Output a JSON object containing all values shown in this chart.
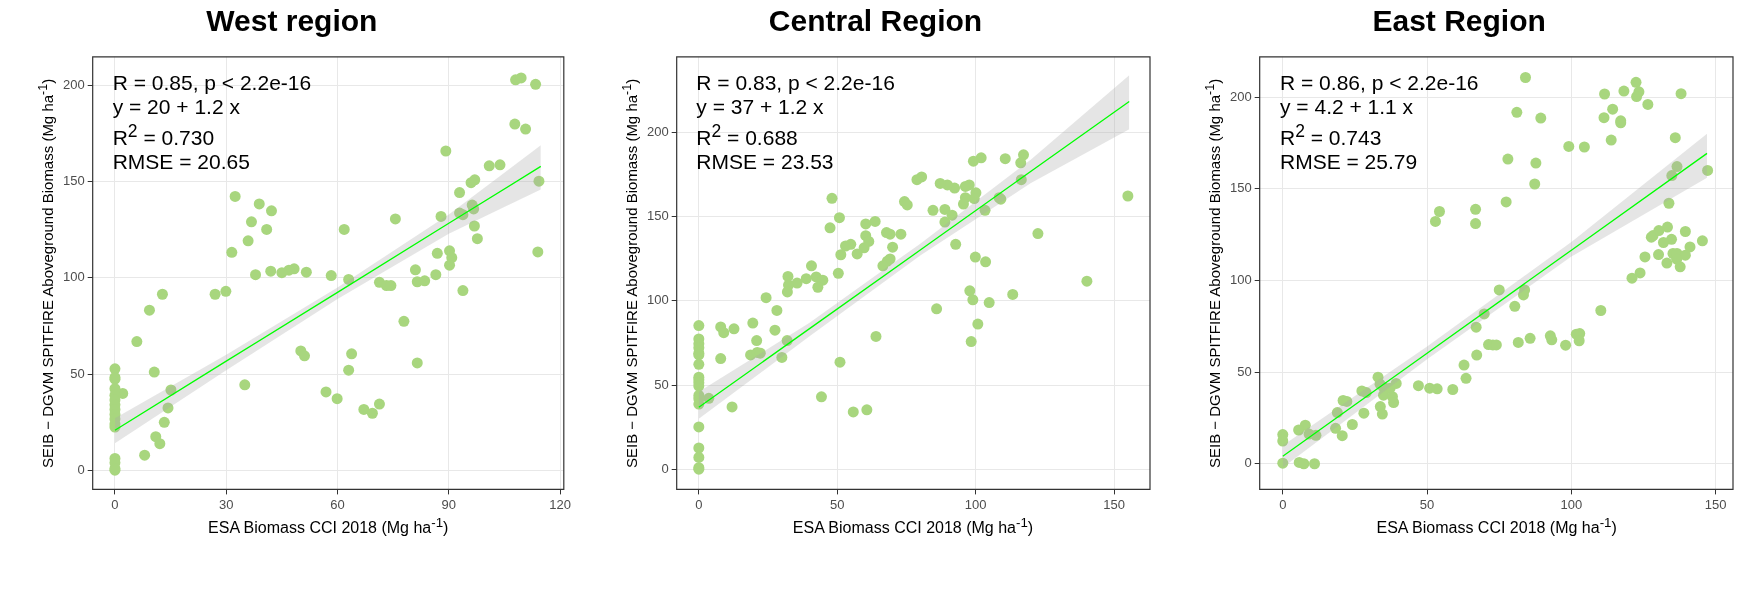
{
  "chart_data": [
    {
      "type": "scatter",
      "title": "West region",
      "xlabel": "ESA Biomass CCI 2018 (Mg ha$^{-1}$)",
      "ylabel": "SEIB − DGVM SPITFIRE Aboveground Biomass (Mg ha$^{-1}$)",
      "annotations": [
        "R = 0.85, p < 2.2e-16",
        "y = 20 + 1.2 x",
        "R$^{2}$ = 0.730",
        "RMSE = 20.65"
      ],
      "xlim": [
        -6,
        121
      ],
      "ylim": [
        -10,
        215
      ],
      "xticks": [
        0,
        30,
        60,
        90,
        120
      ],
      "yticks": [
        0,
        50,
        100,
        150,
        200
      ],
      "grid": true,
      "series": [
        {
          "marker": "circle",
          "color": "#a8d67e",
          "x": [
            108,
            109.5,
            113.4,
            107.8,
            110.7,
            89.2,
            100.9,
            103.8,
            114.3,
            96,
            97,
            92.9,
            96.3,
            96.7,
            92.9,
            93.8,
            87.9,
            96.9,
            97.7,
            114,
            86.9,
            90.2,
            90.8,
            90.2,
            86.5,
            81,
            81.5,
            83.5,
            93.8,
            77.9,
            81.5,
            75.6,
            71.3,
            73.2,
            74.4,
            63,
            58.3,
            61.8,
            51.6,
            48.3,
            46.9,
            45,
            42,
            37.9,
            32.4,
            38.9,
            42.2,
            36.8,
            40.9,
            35.9,
            31.5,
            27,
            29.9,
            12.8,
            9.3,
            5.9,
            10.6,
            15.1,
            2.1,
            14.3,
            13.3,
            11,
            12.1,
            8,
            35,
            50.1,
            51.1,
            63.8,
            63,
            56.9,
            59.9,
            67.1,
            69.4,
            71.3,
            0,
            0,
            0,
            0,
            0,
            0,
            0,
            0,
            0,
            0,
            0,
            0,
            0,
            0,
            0,
            0
          ],
          "values": [
            203,
            204,
            200.7,
            180,
            177.4,
            166,
            158.3,
            158.8,
            150.3,
            149.5,
            151,
            144.4,
            137.9,
            135.9,
            133.7,
            132.9,
            132,
            127,
            120.4,
            113.5,
            112.8,
            114.1,
            110.5,
            106.6,
            101.7,
            104.2,
            98,
            98.5,
            93.4,
            77.4,
            55.8,
            130.7,
            97.7,
            96,
            96,
            99.2,
            101.2,
            125.2,
            103,
            104.7,
            104,
            102.7,
            103.5,
            101.7,
            142.4,
            138.5,
            134.9,
            129.2,
            125.2,
            119.3,
            113.3,
            91.5,
            93,
            91.5,
            83.2,
            66.9,
            51,
            41.7,
            39.9,
            32.4,
            24.9,
            17.4,
            13.8,
            7.8,
            44.4,
            62,
            59.5,
            60.5,
            52,
            40.7,
            37.2,
            31.6,
            29.6,
            34.4,
            52.7,
            48.2,
            47.3,
            42.4,
            39,
            36.5,
            34,
            31.6,
            29,
            26.6,
            24,
            22.4,
            6.1,
            3.8,
            0.8,
            0
          ]
        },
        {
          "type": "line",
          "marker": "none",
          "color": "#00ff00",
          "x": [
            0,
            30,
            60,
            90,
            114.8
          ],
          "values": [
            20.8,
            56.7,
            92.5,
            128.4,
            158
          ],
          "lower": [
            14,
            52,
            89,
            123,
            146
          ],
          "upper": [
            27,
            60,
            95,
            133,
            169
          ]
        }
      ]
    },
    {
      "type": "scatter",
      "title": "Central Region",
      "xlabel": "ESA Biomass CCI 2018 (Mg ha$^{-1}$)",
      "ylabel": "SEIB − DGVM SPITFIRE Aboveground Biomass (Mg ha$^{-1}$)",
      "annotations": [
        "R = 0.83, p < 2.2e-16",
        "y = 37 + 1.2 x",
        "R$^{2}$ = 0.688",
        "RMSE = 23.53"
      ],
      "xlim": [
        -8,
        163
      ],
      "ylim": [
        -12,
        245
      ],
      "xticks": [
        0,
        50,
        100,
        150
      ],
      "yticks": [
        0,
        50,
        100,
        150,
        200
      ],
      "grid": true,
      "series": [
        {
          "marker": "circle",
          "color": "#a8d67e",
          "x": [
            155,
            140.2,
            122.5,
            113.4,
            104.9,
            99,
            97.9,
            100.8,
            98.4,
            85.9,
            64,
            51,
            44.3,
            55.8,
            60.7,
            12,
            3.6,
            117.3,
            116.3,
            110.7,
            102,
            99.2,
            116.5,
            108.5,
            109.1,
            100.1,
            99.5,
            96.3,
            95.6,
            103.4,
            97.7,
            96.3,
            92.4,
            89.8,
            87.2,
            88.9,
            91.5,
            88.9,
            84.6,
            92.8,
            99.9,
            103.6,
            80.5,
            78.8,
            74.3,
            75.3,
            73,
            69.1,
            67.8,
            70,
            69.1,
            68.1,
            66.5,
            63.7,
            60.3,
            60.3,
            61.4,
            59.7,
            57.2,
            54.9,
            53,
            51.3,
            50.8,
            48.1,
            47.4,
            50.4,
            40.7,
            38.8,
            42.4,
            44.8,
            43,
            35.5,
            32.2,
            32.4,
            32,
            24.3,
            28.2,
            27.5,
            31.9,
            30,
            19.5,
            20.9,
            18.7,
            21.1,
            22.2,
            7.9,
            9,
            12.7,
            7.9,
            0,
            0,
            0,
            0,
            0,
            0,
            0,
            0,
            0,
            0,
            0,
            0,
            0,
            0,
            0,
            0,
            0,
            0,
            0
          ],
          "values": [
            162.3,
            111.7,
            140,
            103.8,
            99,
            100.6,
            106,
            86.2,
            75.8,
            95.3,
            78.9,
            63.6,
            43,
            34,
            35.3,
            37,
            42.1,
            186.8,
            182,
            184.5,
            185,
            183,
            172,
            161.3,
            160.4,
            164.2,
            160.8,
            161.3,
            157.5,
            153.8,
            168.9,
            168,
            167,
            168.9,
            169.8,
            154.3,
            150.9,
            146.8,
            153.8,
            133.6,
            126,
            123.2,
            173.6,
            172,
            159,
            157,
            139.6,
            139.6,
            140.6,
            131.9,
            124.9,
            123.6,
            120.8,
            147.2,
            145.7,
            138.7,
            135.3,
            131.5,
            127.9,
            133.6,
            132.6,
            127.4,
            149.4,
            160.9,
            143.4,
            116.4,
            120.8,
            113.2,
            114.2,
            112.3,
            108.1,
            110.6,
            114.5,
            109.4,
            105.3,
            101.9,
            94.3,
            82.6,
            76.4,
            66.4,
            86.8,
            76.4,
            67.9,
            69.4,
            68.9,
            84.5,
            81.1,
            83.4,
            65.7,
            85.3,
            77.4,
            74.5,
            72.1,
            68.9,
            67.9,
            62.3,
            54.7,
            53.2,
            51.3,
            49.4,
            43.8,
            41.9,
            38.7,
            25.1,
            12.6,
            7,
            0.9,
            0
          ]
        },
        {
          "type": "line",
          "marker": "none",
          "color": "#00ff00",
          "x": [
            0,
            40,
            80,
            120,
            155.5
          ],
          "values": [
            36.8,
            83.5,
            130.2,
            177,
            218.4
          ],
          "lower": [
            30,
            79,
            127,
            170,
            202
          ],
          "upper": [
            46,
            87,
            134,
            184,
            234
          ]
        }
      ]
    },
    {
      "type": "scatter",
      "title": "East Region",
      "xlabel": "ESA Biomass CCI 2018 (Mg ha$^{-1}$)",
      "ylabel": "SEIB − DGVM SPITFIRE Aboveground Biomass (Mg ha$^{-1}$)",
      "annotations": [
        "R = 0.86, p < 2.2e-16",
        "y = 4.2 + 1.1 x",
        "R$^{2}$ = 0.743",
        "RMSE = 25.79"
      ],
      "xlim": [
        -8,
        156
      ],
      "ylim": [
        -14,
        222
      ],
      "xticks": [
        0,
        50,
        100,
        150
      ],
      "yticks": [
        0,
        50,
        100,
        150,
        200
      ],
      "grid": true,
      "series": [
        {
          "marker": "circle",
          "color": "#a8d67e",
          "x": [
            84.1,
            122.4,
            111.5,
            118.2,
            123.4,
            122.6,
            138,
            126.5,
            81.1,
            89.4,
            114.3,
            111.3,
            117.1,
            117.1,
            113.8,
            136,
            99.1,
            104.5,
            78,
            87.7,
            87.3,
            77.4,
            136.6,
            134.8,
            147.2,
            133.8,
            52.9,
            54.3,
            66.8,
            66.8,
            133.3,
            130.3,
            139.5,
            128.3,
            127.7,
            145.4,
            134.7,
            131.9,
            141.1,
            135.2,
            136.6,
            139.5,
            130.2,
            125.5,
            133.1,
            136.5,
            137.7,
            123.8,
            121,
            110.2,
            75,
            83.8,
            83.4,
            80.4,
            69.8,
            67,
            67.2,
            62.8,
            63.5,
            71.3,
            72.8,
            74,
            81.6,
            85.7,
            92.7,
            93.2,
            98,
            101.7,
            102.9,
            102.7,
            47,
            50.9,
            53.5,
            58.9,
            33,
            33.7,
            34.9,
            37.2,
            39.3,
            34.9,
            38,
            38.4,
            33.8,
            34.5,
            27.4,
            28.9,
            28.1,
            20.9,
            22.2,
            18.9,
            18.3,
            20.6,
            24.1,
            7.8,
            5.5,
            9.1,
            11.5,
            0,
            0,
            0,
            5.7,
            7.3,
            11
          ],
          "values": [
            210.7,
            208.1,
            201.7,
            203.3,
            202.9,
            200.3,
            201.9,
            196,
            191.7,
            188.6,
            193.4,
            188.8,
            187.1,
            186,
            176.6,
            177.9,
            173.1,
            172.8,
            166.2,
            164,
            152.6,
            142.8,
            162.1,
            157.2,
            160,
            142.1,
            132.2,
            137.6,
            138.8,
            131,
            129.1,
            127.2,
            126.7,
            124.5,
            123.6,
            121.6,
            122.4,
            120.7,
            118.3,
            114.7,
            114.7,
            113.8,
            114.1,
            112.8,
            109.5,
            111.6,
            107.4,
            104.1,
            101.2,
            83.6,
            94.8,
            94.8,
            92.1,
            85.9,
            81.7,
            74.5,
            59.3,
            53.8,
            46.6,
            65,
            64.8,
            64.8,
            66.2,
            68.4,
            69.8,
            67.6,
            64.7,
            70.7,
            71,
            67.1,
            42.6,
            41.2,
            40.9,
            40.5,
            47.2,
            43.4,
            41.7,
            41.2,
            43.8,
            37.4,
            36.6,
            33.4,
            31.2,
            27.1,
            39.7,
            38.8,
            27.6,
            34.5,
            34,
            27.9,
            19.3,
            15.3,
            21.4,
            21,
            18.4,
            16.2,
            15.5,
            15.9,
            12.4,
            0.3,
            0.7,
            0,
            0
          ]
        },
        {
          "type": "line",
          "marker": "none",
          "color": "#00ff00",
          "x": [
            0,
            50,
            100,
            147
          ],
          "values": [
            4.1,
            60.3,
            116.5,
            169.3
          ],
          "lower": [
            -2,
            57,
            113,
            156
          ],
          "upper": [
            10,
            64,
            121,
            180
          ]
        }
      ]
    }
  ]
}
